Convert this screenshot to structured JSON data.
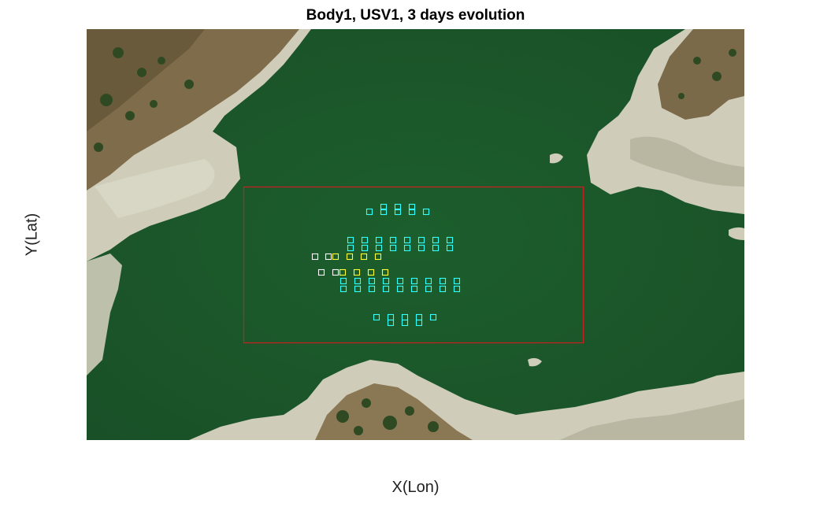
{
  "title": "Body1, USV1, 3 days evolution",
  "xlabel": "X(Lon)",
  "ylabel": "Y(Lat)",
  "colors": {
    "water": "#1d5a2c",
    "water_dark": "#174a24",
    "shore": "#c9c7b4",
    "land": "#7c6b4c",
    "trees": "#2f4a22",
    "boundary": "#cc1f1f",
    "day1_marker": "#ffffff",
    "day2_marker": "#ffff33",
    "day3_marker": "#33ffff"
  }
}
